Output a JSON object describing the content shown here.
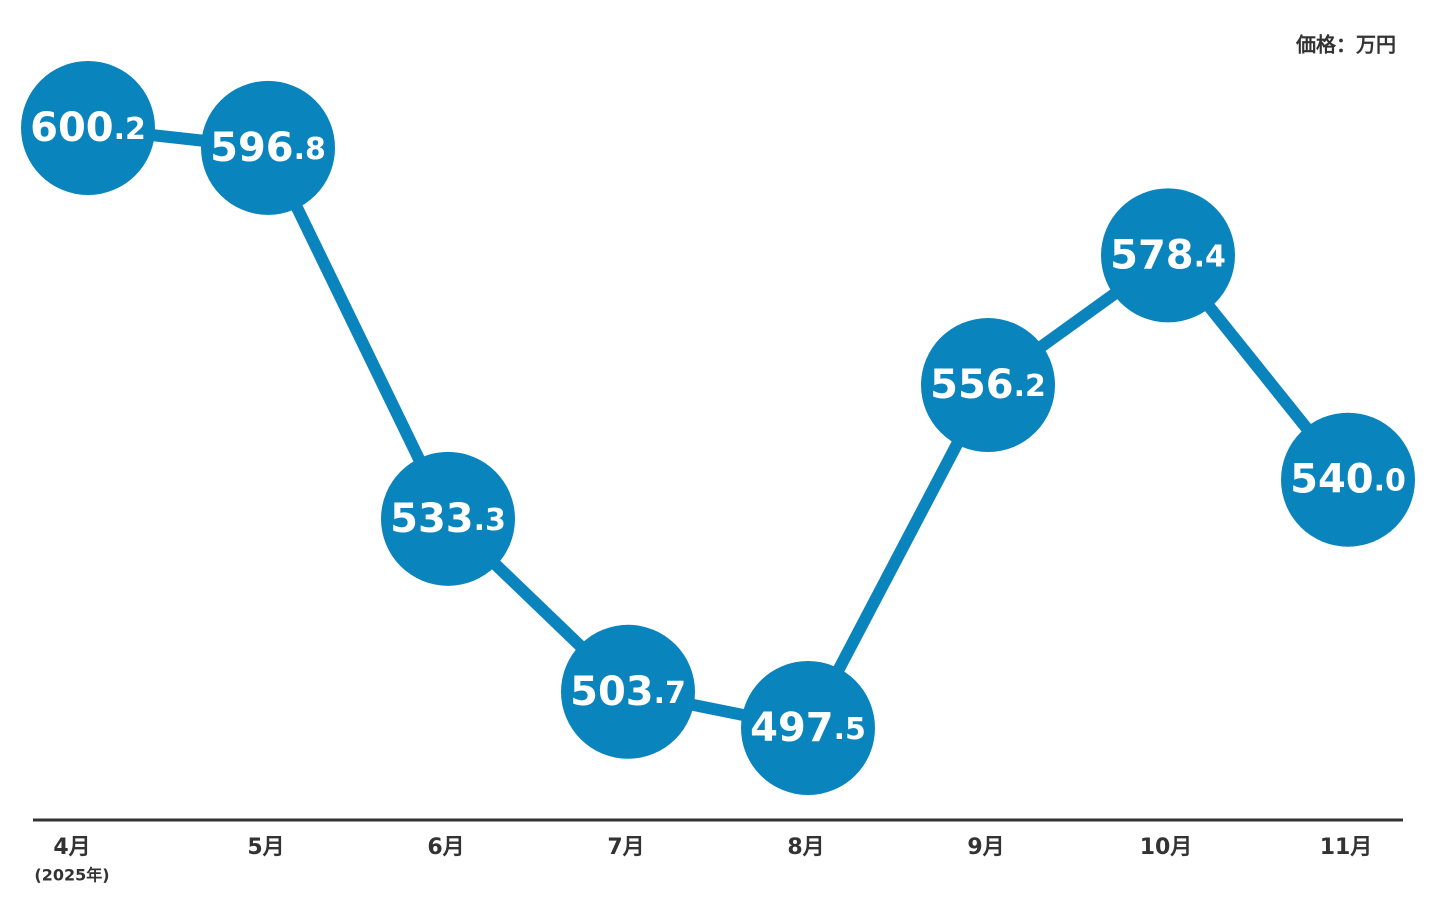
{
  "chart_data": {
    "type": "line",
    "unit_label": "価格：万円",
    "year_note": "(2025年)",
    "categories": [
      "4月",
      "5月",
      "6月",
      "7月",
      "8月",
      "9月",
      "10月",
      "11月"
    ],
    "values": [
      600.2,
      596.8,
      533.3,
      503.7,
      497.5,
      556.2,
      578.4,
      540.0
    ],
    "value_labels": [
      "600.2",
      "596.8",
      "533.3",
      "503.7",
      "497.5",
      "556.2",
      "578.4",
      "540.0"
    ],
    "color": "#0a84bc"
  }
}
